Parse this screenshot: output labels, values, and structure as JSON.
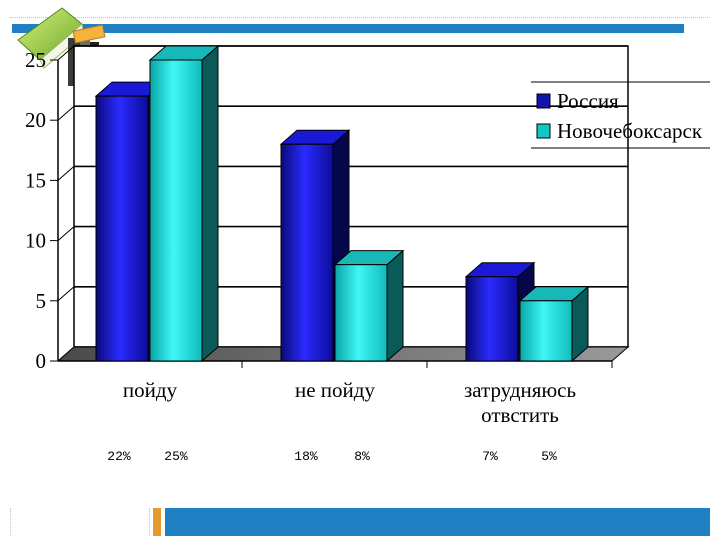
{
  "chart_data": {
    "type": "bar",
    "categories": [
      "пойду",
      "не пойду",
      "затрудняюсь отвстить"
    ],
    "series": [
      {
        "name": "Россия",
        "values": [
          22,
          18,
          7
        ],
        "color": "#1313b0"
      },
      {
        "name": "Новочебоксарск",
        "values": [
          25,
          8,
          5
        ],
        "color": "#10c8c8"
      }
    ],
    "ylim": [
      0,
      25
    ],
    "yticks": [
      "0",
      "5",
      "10",
      "15",
      "20",
      "25"
    ],
    "grid": true,
    "legend": "top-right",
    "three_d": true
  },
  "percent_labels": [
    "22%",
    "25%",
    "18%",
    "8%",
    "7%",
    "5%"
  ]
}
